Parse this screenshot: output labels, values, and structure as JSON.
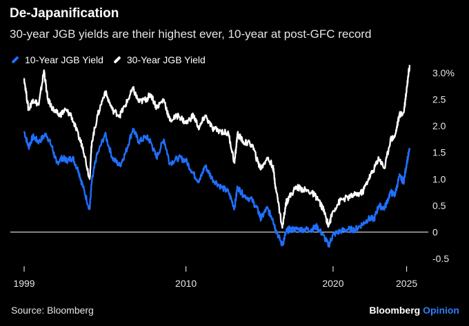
{
  "title": "De-Japanification",
  "subtitle": "30-year JGB yields are their highest ever, 10-year at post-GFC record",
  "source": "Source: Bloomberg",
  "brand": {
    "name": "Bloomberg",
    "accent": "Opinion"
  },
  "colors": {
    "ten_year": "#1f6fff",
    "thirty_year": "#ffffff",
    "zero_line": "#ffffff",
    "background": "#000000"
  },
  "chart_data": {
    "type": "line",
    "xlim": [
      1999,
      2025.3
    ],
    "ylim": [
      -0.5,
      3.0
    ],
    "y_ticks": [
      -0.5,
      0,
      0.5,
      1.0,
      1.5,
      2.0,
      2.5,
      3.0
    ],
    "y_tick_labels": [
      "-0.5",
      "0",
      "0.5",
      "1.0",
      "1.5",
      "2.0",
      "2.5",
      "3.0%"
    ],
    "x_ticks": [
      1999,
      2010,
      2020,
      2025
    ],
    "x_tick_labels": [
      "1999",
      "2010",
      "2020",
      "2025"
    ],
    "legend_placement": "top-left",
    "series": [
      {
        "name": "10-Year JGB Yield",
        "color": "#1f6fff",
        "points": [
          [
            1999.0,
            1.9
          ],
          [
            1999.3,
            1.6
          ],
          [
            1999.6,
            1.8
          ],
          [
            2000.0,
            1.7
          ],
          [
            2000.5,
            1.85
          ],
          [
            2000.9,
            1.6
          ],
          [
            2001.2,
            1.3
          ],
          [
            2001.6,
            1.4
          ],
          [
            2001.9,
            1.35
          ],
          [
            2002.3,
            1.4
          ],
          [
            2002.7,
            1.15
          ],
          [
            2003.0,
            0.85
          ],
          [
            2003.45,
            0.43
          ],
          [
            2003.6,
            0.95
          ],
          [
            2003.9,
            1.4
          ],
          [
            2004.5,
            1.85
          ],
          [
            2005.0,
            1.4
          ],
          [
            2005.5,
            1.25
          ],
          [
            2005.9,
            1.5
          ],
          [
            2006.4,
            1.95
          ],
          [
            2006.8,
            1.7
          ],
          [
            2007.3,
            1.8
          ],
          [
            2007.6,
            1.7
          ],
          [
            2008.0,
            1.4
          ],
          [
            2008.5,
            1.75
          ],
          [
            2008.9,
            1.3
          ],
          [
            2009.5,
            1.4
          ],
          [
            2010.0,
            1.35
          ],
          [
            2010.5,
            1.1
          ],
          [
            2010.9,
            0.95
          ],
          [
            2011.3,
            1.25
          ],
          [
            2011.8,
            1.0
          ],
          [
            2012.4,
            0.85
          ],
          [
            2012.9,
            0.75
          ],
          [
            2013.3,
            0.45
          ],
          [
            2013.5,
            0.85
          ],
          [
            2013.9,
            0.7
          ],
          [
            2014.5,
            0.6
          ],
          [
            2014.9,
            0.4
          ],
          [
            2015.1,
            0.25
          ],
          [
            2015.5,
            0.45
          ],
          [
            2015.9,
            0.25
          ],
          [
            2016.1,
            0.05
          ],
          [
            2016.55,
            -0.25
          ],
          [
            2016.8,
            0.0
          ],
          [
            2017.0,
            0.05
          ],
          [
            2017.5,
            0.05
          ],
          [
            2018.0,
            0.05
          ],
          [
            2018.5,
            0.05
          ],
          [
            2018.9,
            0.1
          ],
          [
            2019.3,
            -0.05
          ],
          [
            2019.7,
            -0.25
          ],
          [
            2020.0,
            -0.05
          ],
          [
            2020.5,
            0.02
          ],
          [
            2021.0,
            0.05
          ],
          [
            2021.5,
            0.05
          ],
          [
            2022.0,
            0.15
          ],
          [
            2022.4,
            0.25
          ],
          [
            2022.8,
            0.25
          ],
          [
            2023.1,
            0.5
          ],
          [
            2023.5,
            0.45
          ],
          [
            2023.9,
            0.75
          ],
          [
            2024.2,
            0.7
          ],
          [
            2024.5,
            1.05
          ],
          [
            2024.8,
            0.95
          ],
          [
            2025.0,
            1.3
          ],
          [
            2025.2,
            1.55
          ]
        ]
      },
      {
        "name": "30-Year JGB Yield",
        "color": "#ffffff",
        "points": [
          [
            1999.0,
            2.9
          ],
          [
            1999.3,
            2.3
          ],
          [
            1999.6,
            2.5
          ],
          [
            2000.0,
            2.4
          ],
          [
            2000.35,
            3.05
          ],
          [
            2000.6,
            2.5
          ],
          [
            2001.0,
            2.3
          ],
          [
            2001.4,
            2.2
          ],
          [
            2001.8,
            2.3
          ],
          [
            2002.2,
            2.2
          ],
          [
            2002.7,
            1.8
          ],
          [
            2003.0,
            1.6
          ],
          [
            2003.45,
            1.0
          ],
          [
            2003.6,
            1.7
          ],
          [
            2004.0,
            2.2
          ],
          [
            2004.5,
            2.65
          ],
          [
            2005.0,
            2.3
          ],
          [
            2005.5,
            2.2
          ],
          [
            2005.9,
            2.4
          ],
          [
            2006.4,
            2.7
          ],
          [
            2006.8,
            2.45
          ],
          [
            2007.3,
            2.5
          ],
          [
            2007.6,
            2.6
          ],
          [
            2008.0,
            2.35
          ],
          [
            2008.5,
            2.5
          ],
          [
            2008.9,
            2.1
          ],
          [
            2009.5,
            2.2
          ],
          [
            2010.0,
            2.05
          ],
          [
            2010.5,
            2.2
          ],
          [
            2010.9,
            1.95
          ],
          [
            2011.3,
            2.2
          ],
          [
            2011.8,
            1.95
          ],
          [
            2012.4,
            1.9
          ],
          [
            2012.9,
            1.85
          ],
          [
            2013.3,
            1.3
          ],
          [
            2013.5,
            1.85
          ],
          [
            2013.9,
            1.7
          ],
          [
            2014.5,
            1.65
          ],
          [
            2014.9,
            1.3
          ],
          [
            2015.1,
            1.2
          ],
          [
            2015.5,
            1.4
          ],
          [
            2015.9,
            1.25
          ],
          [
            2016.1,
            0.85
          ],
          [
            2016.55,
            0.08
          ],
          [
            2016.8,
            0.55
          ],
          [
            2017.0,
            0.65
          ],
          [
            2017.5,
            0.85
          ],
          [
            2018.0,
            0.8
          ],
          [
            2018.5,
            0.75
          ],
          [
            2018.9,
            0.65
          ],
          [
            2019.3,
            0.45
          ],
          [
            2019.7,
            0.12
          ],
          [
            2020.0,
            0.4
          ],
          [
            2020.5,
            0.6
          ],
          [
            2021.0,
            0.65
          ],
          [
            2021.5,
            0.7
          ],
          [
            2022.0,
            0.75
          ],
          [
            2022.4,
            1.0
          ],
          [
            2022.8,
            1.2
          ],
          [
            2023.1,
            1.4
          ],
          [
            2023.5,
            1.2
          ],
          [
            2023.9,
            1.75
          ],
          [
            2024.2,
            1.8
          ],
          [
            2024.5,
            2.2
          ],
          [
            2024.8,
            2.25
          ],
          [
            2025.0,
            2.7
          ],
          [
            2025.2,
            3.15
          ]
        ]
      }
    ]
  }
}
